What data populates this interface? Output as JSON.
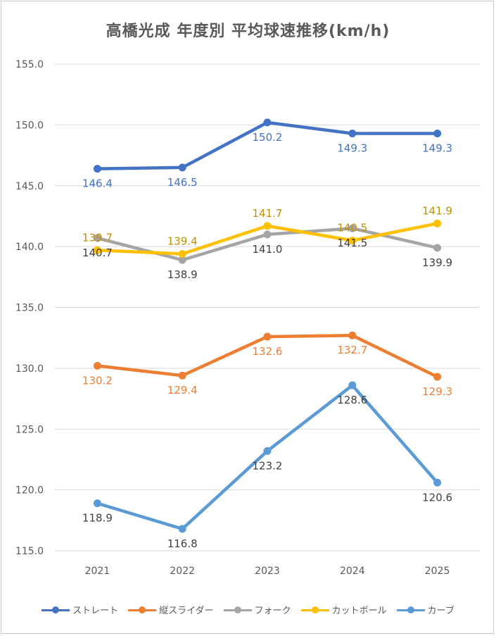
{
  "chart_data": {
    "type": "line",
    "title": "高橋光成 年度別 平均球速推移(km/h)",
    "categories": [
      "2021",
      "2022",
      "2023",
      "2024",
      "2025"
    ],
    "ylim": [
      115.0,
      155.0
    ],
    "yticks": [
      "115.0",
      "120.0",
      "125.0",
      "130.0",
      "135.0",
      "140.0",
      "145.0",
      "150.0",
      "155.0"
    ],
    "grid": true,
    "legend": "bottom",
    "series": [
      {
        "name": "ストレート",
        "color": "#4472C4",
        "values": [
          146.4,
          146.5,
          150.2,
          149.3,
          149.3
        ],
        "labels": [
          "146.4",
          "146.5",
          "150.2",
          "149.3",
          "149.3"
        ],
        "label_pos": [
          "below",
          "below",
          "below",
          "below",
          "below"
        ]
      },
      {
        "name": "縦スライダー",
        "color": "#ED7D31",
        "values": [
          130.2,
          129.4,
          132.6,
          132.7,
          129.3
        ],
        "labels": [
          "130.2",
          "129.4",
          "132.6",
          "132.7",
          "129.3"
        ],
        "label_pos": [
          "below",
          "below",
          "below",
          "below",
          "below"
        ]
      },
      {
        "name": "フォーク",
        "color": "#A5A5A5",
        "values": [
          140.7,
          138.9,
          141.0,
          141.5,
          139.9
        ],
        "labels": [
          "140.7",
          "138.9",
          "141.0",
          "141.5",
          "139.9"
        ],
        "label_color": "#404040",
        "label_pos": [
          "below",
          "below",
          "below",
          "below",
          "below"
        ]
      },
      {
        "name": "カットボール",
        "color": "#FFC000",
        "values": [
          139.7,
          139.4,
          141.7,
          140.5,
          141.9
        ],
        "labels": [
          "139.7",
          "139.4",
          "141.7",
          "140.5",
          "141.9"
        ],
        "label_color": "#C09000",
        "label_pos": [
          "above",
          "above",
          "above",
          "above",
          "above"
        ]
      },
      {
        "name": "カーブ",
        "color": "#5B9BD5",
        "values": [
          118.9,
          116.8,
          123.2,
          128.6,
          120.6
        ],
        "labels": [
          "118.9",
          "116.8",
          "123.2",
          "128.6",
          "120.6"
        ],
        "label_color": "#404040",
        "label_pos": [
          "below",
          "below",
          "below",
          "below",
          "below"
        ]
      }
    ]
  }
}
